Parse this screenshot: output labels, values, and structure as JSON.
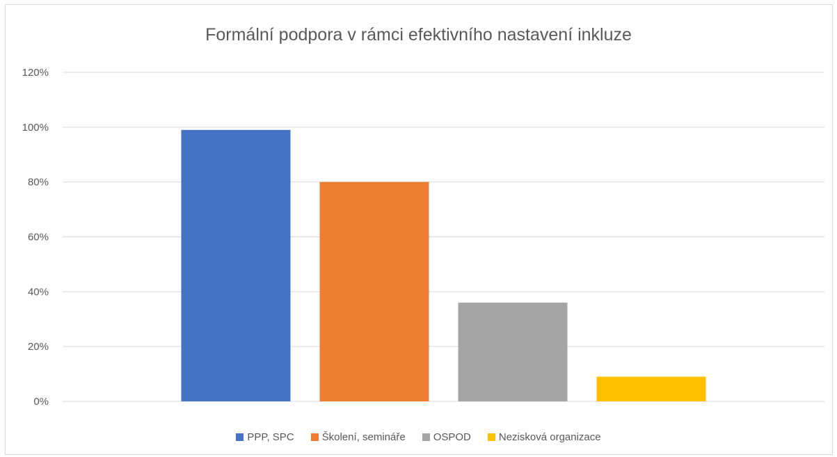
{
  "chart_data": {
    "type": "bar",
    "title": "Formální podpora v rámci efektivního nastavení inkluze",
    "xlabel": "",
    "ylabel": "",
    "ylim": [
      0,
      1.2
    ],
    "yticks": [
      0,
      0.2,
      0.4,
      0.6,
      0.8,
      1.0,
      1.2
    ],
    "ytick_labels": [
      "0%",
      "20%",
      "40%",
      "60%",
      "80%",
      "100%",
      "120%"
    ],
    "grid": true,
    "legend_position": "bottom",
    "series": [
      {
        "name": "PPP, SPC",
        "value": 0.99,
        "color": "#4472c4"
      },
      {
        "name": "Školení, semináře",
        "value": 0.8,
        "color": "#ed7d31"
      },
      {
        "name": "OSPOD",
        "value": 0.36,
        "color": "#a5a5a5"
      },
      {
        "name": "Nezisková organizace",
        "value": 0.09,
        "color": "#ffc000"
      }
    ]
  }
}
